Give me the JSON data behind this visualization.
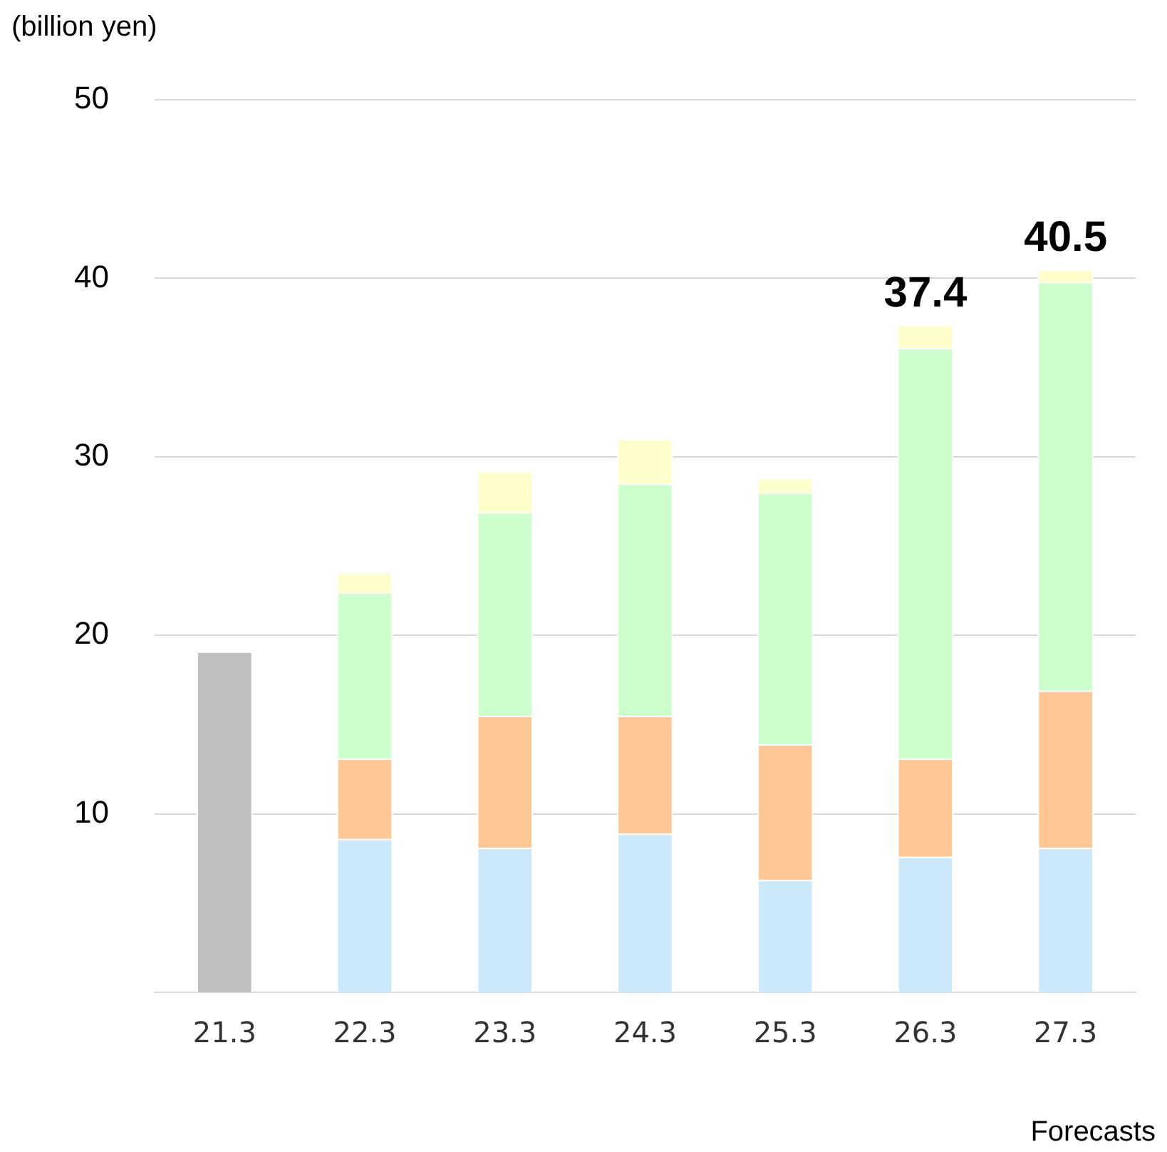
{
  "chart_data": {
    "type": "bar",
    "stacked": true,
    "ylabel": "(billion yen)",
    "categories": [
      "21.3",
      "22.3",
      "23.3",
      "24.3",
      "25.3",
      "26.3",
      "27.3"
    ],
    "series": [
      {
        "color": "#bfbfbf",
        "values": [
          19.1,
          null,
          null,
          null,
          null,
          null,
          null
        ]
      },
      {
        "color": "#cce9fb",
        "values": [
          null,
          8.6,
          8.1,
          8.9,
          6.3,
          7.6,
          8.1
        ]
      },
      {
        "color": "#fdc896",
        "values": [
          null,
          4.5,
          7.4,
          6.6,
          7.6,
          5.5,
          8.8
        ]
      },
      {
        "color": "#ccffcc",
        "values": [
          null,
          9.3,
          11.4,
          13.0,
          14.1,
          23.0,
          22.9
        ]
      },
      {
        "color": "#ffffcc",
        "values": [
          null,
          1.1,
          2.3,
          2.5,
          0.8,
          1.3,
          0.7
        ]
      }
    ],
    "totals": [
      null,
      null,
      null,
      null,
      null,
      "37.4",
      "40.5"
    ],
    "ylim": [
      0,
      50
    ],
    "yticks": [
      10,
      20,
      30,
      40,
      50
    ],
    "grid": "y",
    "annotations": [
      "Forecasts"
    ]
  }
}
